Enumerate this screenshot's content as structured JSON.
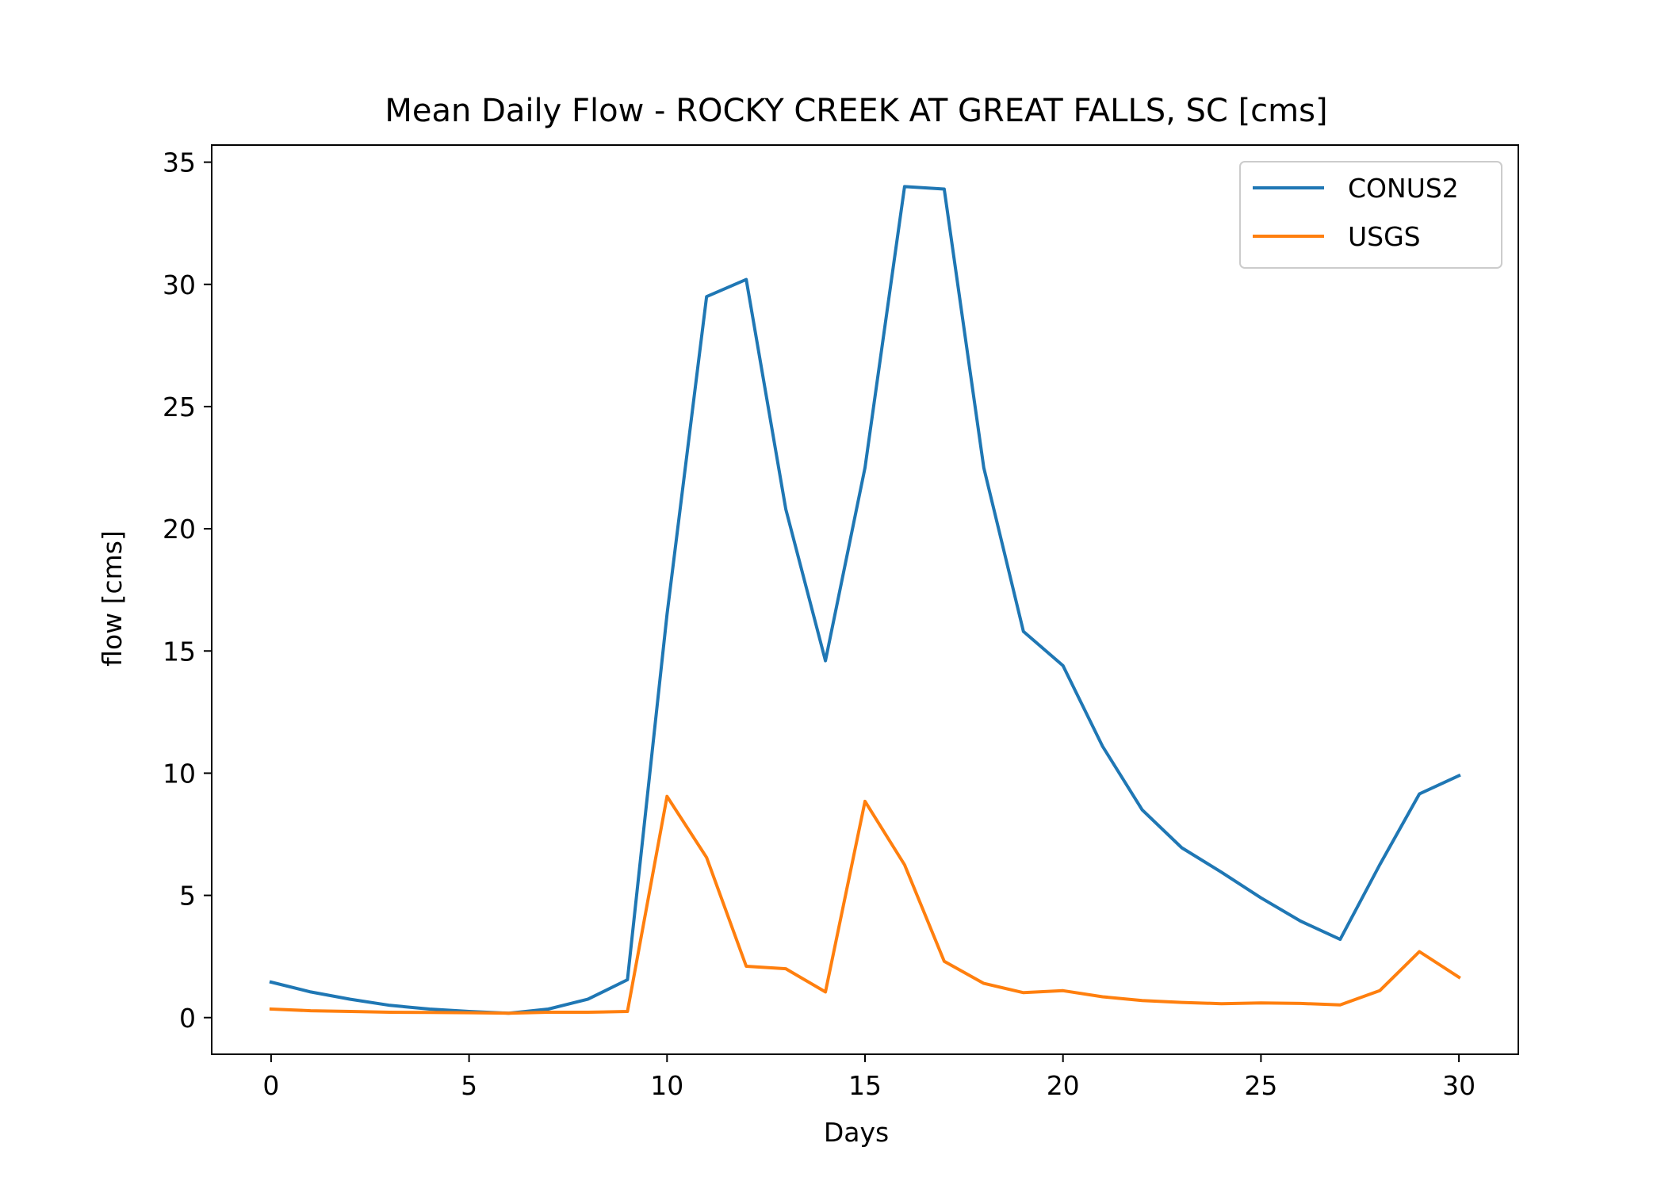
{
  "chart_data": {
    "type": "line",
    "title": "Mean Daily Flow - ROCKY CREEK AT GREAT FALLS, SC [cms]",
    "xlabel": "Days",
    "ylabel": "flow [cms]",
    "xlim": [
      -1.5,
      31.5
    ],
    "ylim": [
      -1.5,
      35.7
    ],
    "xticks": [
      0,
      5,
      10,
      15,
      20,
      25,
      30
    ],
    "yticks": [
      0,
      5,
      10,
      15,
      20,
      25,
      30,
      35
    ],
    "grid": false,
    "legend_position": "top-right",
    "x": [
      0,
      1,
      2,
      3,
      4,
      5,
      6,
      7,
      8,
      9,
      10,
      11,
      12,
      13,
      14,
      15,
      16,
      17,
      18,
      19,
      20,
      21,
      22,
      23,
      24,
      25,
      26,
      27,
      28,
      29,
      30
    ],
    "series": [
      {
        "name": "CONUS2",
        "color": "#1f77b4",
        "values": [
          1.45,
          1.05,
          0.75,
          0.5,
          0.35,
          0.25,
          0.18,
          0.35,
          0.75,
          1.55,
          16.5,
          29.5,
          30.2,
          20.8,
          14.6,
          22.5,
          34.0,
          33.9,
          22.5,
          15.8,
          14.4,
          11.1,
          8.5,
          6.95,
          5.95,
          4.9,
          3.95,
          3.2,
          6.25,
          9.15,
          9.9
        ]
      },
      {
        "name": "USGS",
        "color": "#ff7f0e",
        "values": [
          0.35,
          0.28,
          0.25,
          0.22,
          0.21,
          0.2,
          0.18,
          0.22,
          0.22,
          0.25,
          9.05,
          6.55,
          2.1,
          2.0,
          1.05,
          8.85,
          6.25,
          2.3,
          1.4,
          1.02,
          1.1,
          0.85,
          0.7,
          0.62,
          0.57,
          0.6,
          0.58,
          0.52,
          1.1,
          2.7,
          1.65
        ]
      }
    ]
  }
}
